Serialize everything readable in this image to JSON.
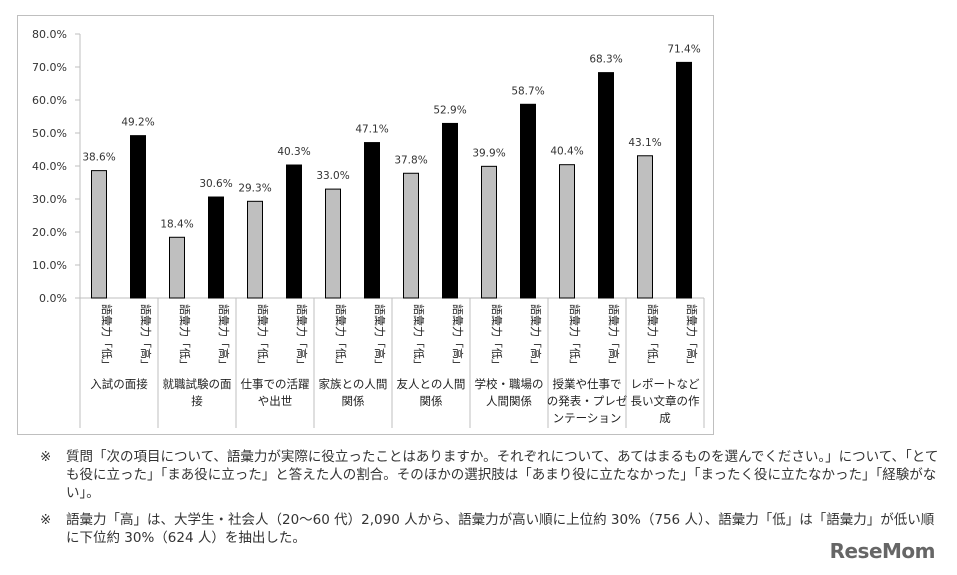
{
  "chart_data": {
    "type": "bar",
    "categories": [
      "入試の面接",
      "就職試験の面接",
      "仕事での活躍や出世",
      "家族との人間関係",
      "友人との人間関係",
      "学校・職場の人間関係",
      "授業や仕事での発表・プレゼンテーション",
      "レポートなど長い文章の作成"
    ],
    "category_label_lines": [
      [
        "入試の面接"
      ],
      [
        "就職試験の面",
        "接"
      ],
      [
        "仕事での活躍",
        "や出世"
      ],
      [
        "家族との人間",
        "関係"
      ],
      [
        "友人との人間",
        "関係"
      ],
      [
        "学校・職場の",
        "人間関係"
      ],
      [
        "授業や仕事で",
        "の発表・プレゼ",
        "ンテーション"
      ],
      [
        "レポートなど",
        "長い文章の作",
        "成"
      ]
    ],
    "bar_labels": [
      "語彙力「低」",
      "語彙力「高」"
    ],
    "series": [
      {
        "name": "語彙力「低」",
        "values": [
          38.6,
          18.4,
          29.3,
          33.0,
          37.8,
          39.9,
          40.4,
          43.1
        ]
      },
      {
        "name": "語彙力「高」",
        "values": [
          49.2,
          30.6,
          40.3,
          47.1,
          52.9,
          58.7,
          68.3,
          71.4
        ]
      }
    ],
    "data_labels": [
      [
        "38.6%",
        "18.4%",
        "29.3%",
        "33.0%",
        "37.8%",
        "39.9%",
        "40.4%",
        "43.1%"
      ],
      [
        "49.2%",
        "30.6%",
        "40.3%",
        "47.1%",
        "52.9%",
        "58.7%",
        "68.3%",
        "71.4%"
      ]
    ],
    "y_ticks": [
      "0.0%",
      "10.0%",
      "20.0%",
      "30.0%",
      "40.0%",
      "50.0%",
      "60.0%",
      "70.0%",
      "80.0%"
    ],
    "ylim": [
      0,
      80
    ],
    "grid": false,
    "legend": "none",
    "colors": {
      "low": "#bfbfbf",
      "high": "#000000",
      "bar_edge": "#000000",
      "axis": "#bfbfbf"
    },
    "title": "",
    "xlabel": "",
    "ylabel": ""
  },
  "notes": [
    {
      "mark": "※",
      "text": "質問「次の項目について、語彙力が実際に役立ったことはありますか。それぞれについて、あてはまるものを選んでください。」について、「とても役に立った」「まあ役に立った」と答えた人の割合。そのほかの選択肢は「あまり役に立たなかった」「まったく役に立たなかった」「経験がない」。"
    },
    {
      "mark": "※",
      "text": "語彙力「高」は、大学生・社会人（20〜60 代）2,090 人から、語彙力が高い順に上位約 30%（756 人）、語彙力「低」は「語彙力」が低い順に下位約 30%（624 人）を抽出した。"
    }
  ],
  "brand": "ReseMom"
}
